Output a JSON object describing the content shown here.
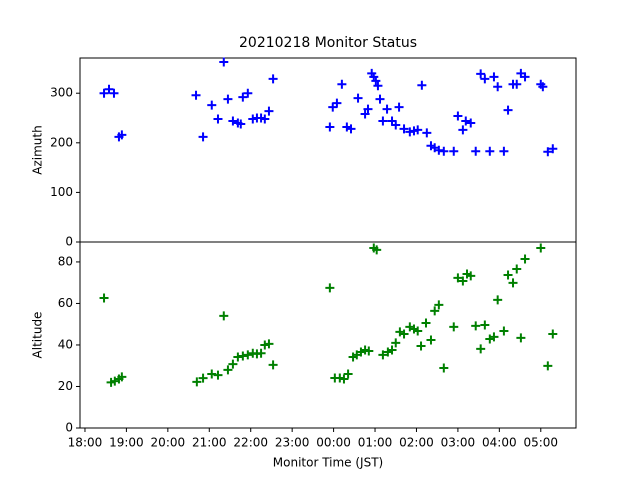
{
  "chart_data": [
    {
      "type": "scatter",
      "title": "20210218 Monitor Status",
      "y_label": "Azimuth",
      "xlim": [
        17.88,
        29.85
      ],
      "ylim": [
        0,
        371
      ],
      "yticks": [
        0,
        100,
        200,
        300
      ],
      "color": "#0000ff",
      "x": [
        18.46,
        18.58,
        18.7,
        18.82,
        18.89,
        20.68,
        20.85,
        21.06,
        21.21,
        21.35,
        21.45,
        21.57,
        21.69,
        21.76,
        21.81,
        21.93,
        22.05,
        22.15,
        22.25,
        22.34,
        22.44,
        22.54,
        23.91,
        23.98,
        24.08,
        24.2,
        24.32,
        24.42,
        24.59,
        24.76,
        24.83,
        24.92,
        24.97,
        25.02,
        25.07,
        25.12,
        25.19,
        25.29,
        25.41,
        25.5,
        25.58,
        25.7,
        25.84,
        25.94,
        26.03,
        26.13,
        26.25,
        26.35,
        26.44,
        26.54,
        26.66,
        26.9,
        27.0,
        27.12,
        27.19,
        27.31,
        27.43,
        27.55,
        27.65,
        27.77,
        27.87,
        27.96,
        28.11,
        28.21,
        28.33,
        28.42,
        28.52,
        28.62,
        29.0,
        29.05,
        29.17,
        29.29
      ],
      "values": [
        300,
        308,
        300,
        212,
        216,
        296,
        212,
        276,
        248,
        363,
        288,
        244,
        240,
        238,
        292,
        300,
        248,
        250,
        250,
        248,
        264,
        329,
        232,
        272,
        280,
        318,
        232,
        228,
        290,
        258,
        268,
        340,
        333,
        325,
        315,
        288,
        244,
        268,
        244,
        236,
        272,
        228,
        222,
        224,
        226,
        316,
        220,
        194,
        190,
        185,
        183,
        183,
        254,
        226,
        244,
        240,
        183,
        339,
        329,
        183,
        333,
        313,
        183,
        266,
        318,
        318,
        340,
        333,
        318,
        313,
        182,
        188
      ]
    },
    {
      "type": "scatter",
      "x_label": "Monitor Time (JST)",
      "y_label": "Altitude",
      "xlim": [
        17.88,
        29.85
      ],
      "ylim": [
        0,
        89.6
      ],
      "yticks": [
        0,
        20,
        40,
        60,
        80
      ],
      "color": "#008000",
      "xticks": [
        {
          "value": 18,
          "label": "18:00"
        },
        {
          "value": 19,
          "label": "19:00"
        },
        {
          "value": 20,
          "label": "20:00"
        },
        {
          "value": 21,
          "label": "21:00"
        },
        {
          "value": 22,
          "label": "22:00"
        },
        {
          "value": 23,
          "label": "23:00"
        },
        {
          "value": 24,
          "label": "00:00"
        },
        {
          "value": 25,
          "label": "01:00"
        },
        {
          "value": 26,
          "label": "02:00"
        },
        {
          "value": 27,
          "label": "03:00"
        },
        {
          "value": 28,
          "label": "04:00"
        },
        {
          "value": 29,
          "label": "05:00"
        }
      ],
      "x": [
        18.46,
        18.63,
        18.72,
        18.82,
        18.89,
        20.7,
        20.85,
        21.06,
        21.21,
        21.35,
        21.45,
        21.57,
        21.69,
        21.81,
        21.93,
        22.05,
        22.15,
        22.25,
        22.34,
        22.44,
        22.54,
        23.91,
        24.03,
        24.15,
        24.25,
        24.35,
        24.47,
        24.56,
        24.66,
        24.76,
        24.85,
        24.97,
        25.04,
        25.19,
        25.31,
        25.41,
        25.5,
        25.6,
        25.7,
        25.84,
        25.94,
        26.03,
        26.11,
        26.23,
        26.35,
        26.44,
        26.54,
        26.66,
        26.9,
        27.0,
        27.12,
        27.22,
        27.31,
        27.43,
        27.55,
        27.65,
        27.77,
        27.87,
        27.96,
        28.11,
        28.21,
        28.33,
        28.42,
        28.52,
        28.62,
        29.0,
        29.17,
        29.29
      ],
      "values": [
        62.6,
        22,
        22.6,
        23.6,
        24.6,
        22.2,
        24,
        26,
        25.5,
        54,
        28,
        30.8,
        34.2,
        34.7,
        35.2,
        36,
        35.7,
        36,
        40,
        40.5,
        30.4,
        67.5,
        24.1,
        24.1,
        23.6,
        26,
        34.2,
        35.2,
        36.6,
        37.6,
        37.1,
        86.7,
        85.8,
        35.2,
        36.6,
        37.6,
        41,
        46.3,
        45.3,
        48.7,
        47.7,
        46.7,
        39.5,
        50.6,
        42.4,
        56.4,
        59.3,
        28.9,
        48.7,
        72.3,
        70.8,
        74.2,
        73.3,
        49.2,
        38.1,
        49.6,
        42.9,
        43.9,
        61.7,
        46.7,
        73.7,
        69.9,
        76.6,
        43.4,
        81.4,
        86.7,
        29.9,
        45.3
      ]
    }
  ]
}
